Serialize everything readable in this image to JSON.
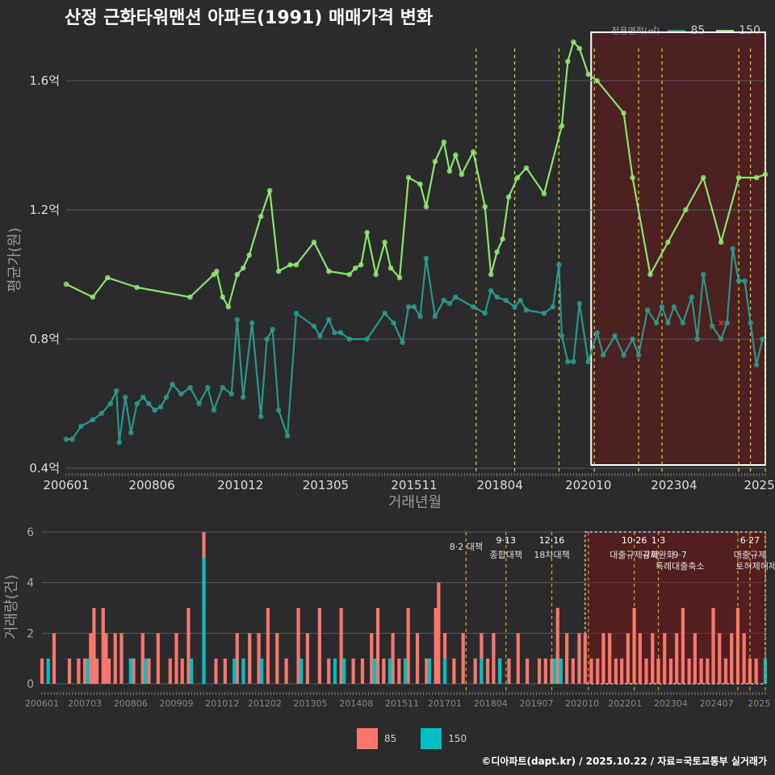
{
  "title": "산정 근화타워맨션 아파트(1991) 매매가격 변화",
  "legend": {
    "title": "전용면적(㎡)",
    "items": [
      {
        "label": "85",
        "color": "#2a9d8f"
      },
      {
        "label": "150",
        "color": "#90ee70"
      }
    ]
  },
  "bottom_legend": [
    {
      "label": "85",
      "color": "#f8766d"
    },
    {
      "label": "150",
      "color": "#00bfc4"
    }
  ],
  "credit": "©디아파트(dapt.kr) / 2025.10.22 / 자료=국토교통부 실거래가",
  "chart_data": [
    {
      "type": "line",
      "title": "산정 근화타워맨션 아파트(1991) 매매가격 변화",
      "xlabel": "거래년월",
      "ylabel": "평균가(원)",
      "ylim": [
        0.4,
        1.7
      ],
      "xlim": [
        2006.0,
        2025.75
      ],
      "yticks": [
        0.4,
        0.8,
        1.2,
        1.6
      ],
      "ytick_labels": [
        "0.4억",
        "0.8억",
        "1.2억",
        "1.6억"
      ],
      "xticks": [
        2006.0,
        2008.42,
        2010.92,
        2013.33,
        2015.83,
        2018.25,
        2020.75,
        2023.17,
        2025.58
      ],
      "xtick_labels": [
        "200601",
        "200806",
        "201012",
        "201305",
        "201511",
        "201804",
        "202010",
        "202304",
        "2025"
      ],
      "policy_lines": [
        2017.58,
        2018.67,
        2019.92,
        2020.92,
        2022.17,
        2022.83,
        2025.0,
        2025.33,
        2025.75
      ],
      "highlight_range": [
        2020.83,
        2025.75,
        0.41,
        1.75
      ],
      "series": [
        {
          "name": "85",
          "color": "#2a9d8f",
          "x": [
            2006.0,
            2006.17,
            2006.42,
            2006.75,
            2007.0,
            2007.25,
            2007.42,
            2007.5,
            2007.67,
            2007.83,
            2008.0,
            2008.17,
            2008.33,
            2008.5,
            2008.67,
            2008.83,
            2009.0,
            2009.25,
            2009.5,
            2009.75,
            2010.0,
            2010.17,
            2010.42,
            2010.67,
            2010.83,
            2011.0,
            2011.25,
            2011.5,
            2011.67,
            2011.83,
            2012.0,
            2012.25,
            2012.5,
            2013.0,
            2013.17,
            2013.42,
            2013.58,
            2013.75,
            2014.0,
            2014.5,
            2015.0,
            2015.25,
            2015.5,
            2015.67,
            2015.83,
            2016.0,
            2016.17,
            2016.42,
            2016.67,
            2016.83,
            2017.0,
            2017.5,
            2017.83,
            2018.0,
            2018.17,
            2018.42,
            2018.67,
            2018.83,
            2019.0,
            2019.5,
            2019.75,
            2019.92,
            2020.0,
            2020.17,
            2020.33,
            2020.5,
            2020.75,
            2021.0,
            2021.17,
            2021.5,
            2021.75,
            2022.0,
            2022.17,
            2022.42,
            2022.67,
            2022.83,
            2023.0,
            2023.17,
            2023.42,
            2023.67,
            2023.83,
            2024.0,
            2024.25,
            2024.5,
            2024.67,
            2024.83,
            2025.0,
            2025.17,
            2025.33,
            2025.5,
            2025.67
          ],
          "values": [
            0.49,
            0.49,
            0.53,
            0.55,
            0.57,
            0.6,
            0.64,
            0.48,
            0.62,
            0.51,
            0.6,
            0.62,
            0.6,
            0.58,
            0.59,
            0.62,
            0.66,
            0.63,
            0.65,
            0.6,
            0.65,
            0.58,
            0.65,
            0.63,
            0.86,
            0.62,
            0.85,
            0.56,
            0.8,
            0.83,
            0.58,
            0.5,
            0.88,
            0.84,
            0.81,
            0.86,
            0.82,
            0.82,
            0.8,
            0.8,
            0.88,
            0.85,
            0.79,
            0.9,
            0.9,
            0.87,
            1.05,
            0.87,
            0.92,
            0.91,
            0.93,
            0.9,
            0.88,
            0.95,
            0.93,
            0.92,
            0.9,
            0.92,
            0.89,
            0.88,
            0.9,
            1.03,
            0.81,
            0.73,
            0.73,
            0.91,
            0.73,
            0.82,
            0.75,
            0.81,
            0.75,
            0.8,
            0.75,
            0.89,
            0.85,
            0.9,
            0.85,
            0.9,
            0.85,
            0.93,
            0.8,
            1.0,
            0.84,
            0.8,
            0.85,
            1.08,
            0.98,
            0.98,
            0.85,
            0.72,
            0.8
          ]
        },
        {
          "name": "150",
          "color": "#90ee70",
          "x": [
            2006.0,
            2006.75,
            2007.17,
            2008.0,
            2009.5,
            2010.17,
            2010.25,
            2010.42,
            2010.58,
            2010.83,
            2011.0,
            2011.17,
            2011.5,
            2011.75,
            2012.0,
            2012.33,
            2012.5,
            2013.0,
            2013.42,
            2014.0,
            2014.17,
            2014.33,
            2014.5,
            2014.75,
            2015.0,
            2015.17,
            2015.42,
            2015.67,
            2016.0,
            2016.17,
            2016.42,
            2016.67,
            2016.83,
            2017.0,
            2017.17,
            2017.5,
            2017.83,
            2018.0,
            2018.17,
            2018.33,
            2018.5,
            2018.75,
            2019.0,
            2019.5,
            2020.0,
            2020.17,
            2020.33,
            2020.5,
            2020.75,
            2021.0,
            2021.75,
            2022.0,
            2022.5,
            2023.0,
            2023.5,
            2024.0,
            2024.5,
            2025.0,
            2025.5,
            2025.75
          ],
          "values": [
            0.97,
            0.93,
            0.99,
            0.96,
            0.93,
            1.0,
            1.01,
            0.93,
            0.9,
            1.0,
            1.02,
            1.06,
            1.18,
            1.26,
            1.01,
            1.03,
            1.03,
            1.1,
            1.01,
            1.0,
            1.02,
            1.03,
            1.13,
            1.0,
            1.1,
            1.02,
            0.99,
            1.3,
            1.28,
            1.21,
            1.35,
            1.41,
            1.32,
            1.37,
            1.31,
            1.38,
            1.21,
            1.0,
            1.07,
            1.11,
            1.24,
            1.3,
            1.33,
            1.25,
            1.46,
            1.66,
            1.72,
            1.7,
            1.62,
            1.6,
            1.5,
            1.3,
            1.0,
            1.1,
            1.2,
            1.3,
            1.1,
            1.3,
            1.3,
            1.31
          ]
        }
      ]
    },
    {
      "type": "bar",
      "xlabel": "",
      "ylabel": "거래량(건)",
      "ylim": [
        0,
        6
      ],
      "yticks": [
        0,
        2,
        4,
        6
      ],
      "xticks": [
        2006.0,
        2007.17,
        2008.42,
        2009.67,
        2010.92,
        2012.08,
        2013.33,
        2014.58,
        2015.83,
        2017.0,
        2018.25,
        2019.5,
        2020.75,
        2021.92,
        2023.17,
        2024.42,
        2025.58
      ],
      "xtick_labels": [
        "200601",
        "200703",
        "200806",
        "200909",
        "201012",
        "201202",
        "201305",
        "201408",
        "201511",
        "201701",
        "201804",
        "201907",
        "202010",
        "202201",
        "202304",
        "202407",
        "2025"
      ],
      "policy_lines": [
        2017.58,
        2018.67,
        2019.92,
        2020.92,
        2022.17,
        2022.83,
        2025.0,
        2025.33,
        2025.75
      ],
      "highlight_range": [
        2020.83,
        2025.75
      ],
      "annotations": [
        {
          "x": 2017.58,
          "line1": "",
          "line2": "8·2 대책"
        },
        {
          "x": 2018.67,
          "line1": "9·13",
          "line2": "종합대책"
        },
        {
          "x": 2019.92,
          "line1": "12·16",
          "line2": "18차대책"
        },
        {
          "x": 2022.17,
          "line1": "10·26",
          "line2": "대출규제강화"
        },
        {
          "x": 2022.83,
          "line1": "1·3",
          "line2": "규제완화"
        },
        {
          "x": 2023.42,
          "line1": "",
          "line2": "9·7"
        },
        {
          "x": 2023.42,
          "line1": "",
          "line2": "특례대출축소"
        },
        {
          "x": 2025.33,
          "line1": "6·27",
          "line2": "대출규제"
        },
        {
          "x": 2025.5,
          "line1": "",
          "line2": "토허제해제"
        }
      ],
      "series": [
        {
          "name": "85",
          "color": "#f8766d",
          "x": [
            2006.0,
            2006.33,
            2006.75,
            2007.0,
            2007.17,
            2007.33,
            2007.42,
            2007.5,
            2007.67,
            2007.75,
            2007.83,
            2008.0,
            2008.17,
            2008.5,
            2008.75,
            2008.92,
            2009.17,
            2009.5,
            2009.67,
            2009.83,
            2010.0,
            2010.42,
            2010.75,
            2011.0,
            2011.33,
            2011.5,
            2011.67,
            2011.92,
            2012.17,
            2012.42,
            2012.67,
            2013.0,
            2013.25,
            2013.58,
            2013.83,
            2014.17,
            2014.5,
            2014.75,
            2015.0,
            2015.17,
            2015.33,
            2015.58,
            2015.75,
            2016.0,
            2016.25,
            2016.5,
            2016.75,
            2016.83,
            2017.0,
            2017.25,
            2017.5,
            2017.83,
            2018.0,
            2018.17,
            2018.33,
            2018.5,
            2018.75,
            2019.0,
            2019.25,
            2019.58,
            2019.75,
            2019.92,
            2020.08,
            2020.33,
            2020.5,
            2020.67,
            2020.83,
            2021.0,
            2021.17,
            2021.33,
            2021.5,
            2021.67,
            2021.83,
            2022.0,
            2022.17,
            2022.33,
            2022.5,
            2022.67,
            2022.83,
            2023.0,
            2023.17,
            2023.33,
            2023.5,
            2023.67,
            2023.83,
            2024.0,
            2024.17,
            2024.33,
            2024.5,
            2024.67,
            2024.83,
            2025.0,
            2025.17,
            2025.33,
            2025.5
          ],
          "values": [
            1,
            2,
            1,
            1,
            1,
            2,
            3,
            1,
            3,
            2,
            1,
            2,
            2,
            1,
            2,
            1,
            2,
            1,
            2,
            1,
            3,
            6,
            1,
            1,
            2,
            1,
            2,
            2,
            3,
            2,
            1,
            3,
            2,
            3,
            1,
            3,
            1,
            1,
            2,
            3,
            1,
            2,
            1,
            3,
            2,
            1,
            3,
            4,
            2,
            1,
            2,
            1,
            2,
            1,
            2,
            1,
            1,
            2,
            1,
            1,
            1,
            1,
            3,
            2,
            1,
            2,
            2,
            1,
            1,
            2,
            2,
            1,
            1,
            2,
            3,
            2,
            1,
            2,
            1,
            2,
            1,
            2,
            3,
            1,
            2,
            1,
            1,
            3,
            2,
            1,
            2,
            3,
            2,
            1,
            1
          ]
        },
        {
          "name": "150",
          "color": "#00bfc4",
          "x": [
            2006.17,
            2007.25,
            2008.42,
            2008.83,
            2010.08,
            2010.42,
            2011.25,
            2011.5,
            2012.0,
            2013.08,
            2014.0,
            2014.25,
            2015.08,
            2015.5,
            2015.92,
            2016.58,
            2017.0,
            2018.0,
            2018.5,
            2020.0,
            2020.17,
            2025.75
          ],
          "values": [
            1,
            1,
            1,
            1,
            1,
            5,
            1,
            1,
            1,
            1,
            1,
            1,
            1,
            1,
            1,
            1,
            1,
            1,
            1,
            1,
            1,
            1
          ]
        }
      ]
    }
  ]
}
